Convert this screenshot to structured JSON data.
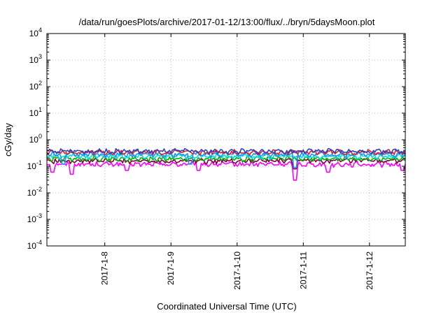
{
  "chart_data": {
    "type": "line",
    "title": "/data/run/goesPlots/archive/2017-01-12/13:00/flux/../bryn/5daysMoon.plot",
    "xlabel": "Coordinated Universal Time (UTC)",
    "ylabel": "cGy/day",
    "yscale": "log",
    "ylim": [
      0.0001,
      10000
    ],
    "y_ticks": [
      {
        "base": "10",
        "exp": "-4",
        "value": 0.0001
      },
      {
        "base": "10",
        "exp": "-3",
        "value": 0.001
      },
      {
        "base": "10",
        "exp": "-2",
        "value": 0.01
      },
      {
        "base": "10",
        "exp": "-1",
        "value": 0.1
      },
      {
        "base": "10",
        "exp": "0",
        "value": 1
      },
      {
        "base": "10",
        "exp": "1",
        "value": 10
      },
      {
        "base": "10",
        "exp": "2",
        "value": 100
      },
      {
        "base": "10",
        "exp": "3",
        "value": 1000
      },
      {
        "base": "10",
        "exp": "4",
        "value": 10000
      }
    ],
    "xlim": [
      "2017-01-07 03:00",
      "2017-01-12 13:00"
    ],
    "x_ticks": [
      "2017-1-8",
      "2017-1-9",
      "2017-1-10",
      "2017-1-11",
      "2017-1-12"
    ],
    "grid": true,
    "legend": "none",
    "series": [
      {
        "color": "#ff00ff",
        "base": 0.12,
        "dips": [
          [
            "2017-01-07 05:00",
            0.06
          ],
          [
            "2017-01-07 12:00",
            0.05
          ],
          [
            "2017-01-08 08:00",
            0.07
          ],
          [
            "2017-01-09 10:00",
            0.07
          ],
          [
            "2017-01-10 21:00",
            0.03
          ],
          [
            "2017-01-11 09:00",
            0.06
          ],
          [
            "2017-01-12 12:00",
            0.07
          ]
        ]
      },
      {
        "color": "#800040",
        "base": 0.16,
        "dips": [
          [
            "2017-01-10 21:00",
            0.08
          ]
        ]
      },
      {
        "color": "#00b000",
        "base": 0.19,
        "dips": []
      },
      {
        "color": "#00e0e0",
        "base": 0.24,
        "dips": []
      },
      {
        "color": "#1e90ff",
        "base": 0.28,
        "dips": [
          [
            "2017-01-07 09:00",
            0.12
          ],
          [
            "2017-01-09 07:00",
            0.12
          ],
          [
            "2017-01-10 21:00",
            0.09
          ]
        ]
      },
      {
        "color": "#e02020",
        "base": 0.34,
        "dips": []
      },
      {
        "color": "#3040c0",
        "base": 0.37,
        "dips": []
      }
    ]
  }
}
